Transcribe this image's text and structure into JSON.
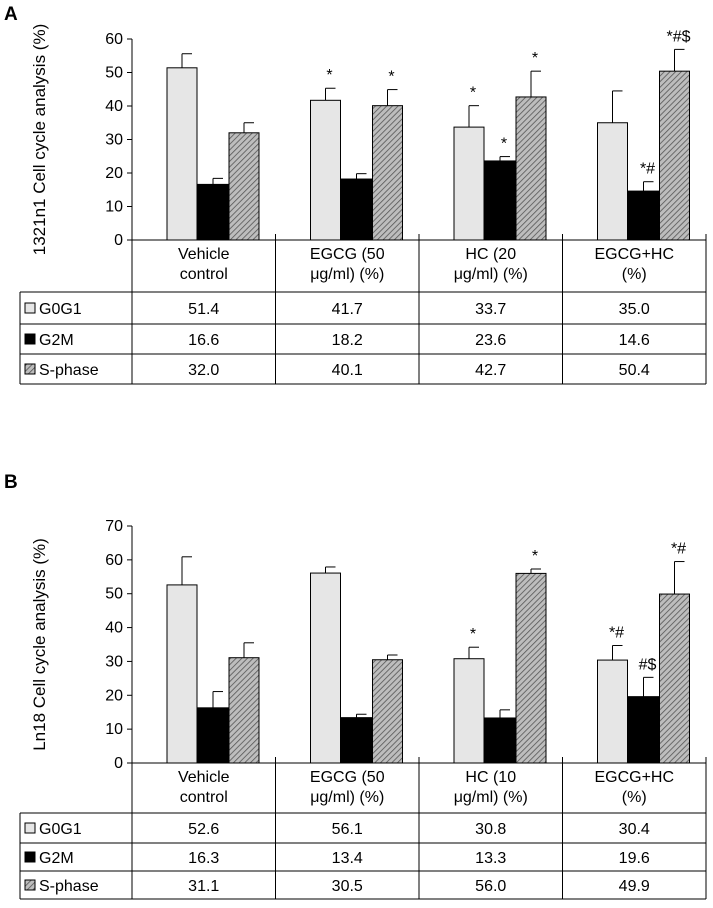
{
  "chart_data": [
    {
      "panel": "A",
      "type": "bar",
      "ylabel": "1321n1 Cell cycle analysis (%)",
      "ylim": [
        0,
        60
      ],
      "yticks": [
        0,
        10,
        20,
        30,
        40,
        50,
        60
      ],
      "categories": [
        [
          "Vehicle",
          "control"
        ],
        [
          "EGCG (50",
          "μg/ml) (%)"
        ],
        [
          "HC  (20",
          "μg/ml) (%)"
        ],
        [
          "EGCG+HC",
          "(%)"
        ]
      ],
      "series": [
        {
          "name": "G0G1",
          "values": [
            51.4,
            41.7,
            33.7,
            35.0
          ],
          "errors": [
            4.2,
            3.6,
            6.4,
            9.5
          ],
          "labels": [
            "",
            "*",
            "*",
            ""
          ]
        },
        {
          "name": "G2M",
          "values": [
            16.6,
            18.2,
            23.6,
            14.6
          ],
          "errors": [
            1.8,
            1.6,
            1.3,
            2.8
          ],
          "labels": [
            "",
            "",
            "*",
            "*#"
          ]
        },
        {
          "name": "S-phase",
          "values": [
            32.0,
            40.1,
            42.7,
            50.4
          ],
          "errors": [
            3.0,
            4.8,
            7.7,
            6.5
          ],
          "labels": [
            "",
            "*",
            "*",
            "*#$"
          ]
        }
      ],
      "table": [
        [
          "51.4",
          "41.7",
          "33.7",
          "35.0"
        ],
        [
          "16.6",
          "18.2",
          "23.6",
          "14.6"
        ],
        [
          "32.0",
          "40.1",
          "42.7",
          "50.4"
        ]
      ]
    },
    {
      "panel": "B",
      "type": "bar",
      "ylabel": "Ln18 Cell cycle analysis (%)",
      "ylim": [
        0,
        70
      ],
      "yticks": [
        0,
        10,
        20,
        30,
        40,
        50,
        60,
        70
      ],
      "categories": [
        [
          "Vehicle",
          "control"
        ],
        [
          "EGCG  (50",
          "μg/ml) (%)"
        ],
        [
          "HC (10",
          "μg/ml) (%)"
        ],
        [
          "EGCG+HC",
          "(%)"
        ]
      ],
      "series": [
        {
          "name": "G0G1",
          "values": [
            52.6,
            56.1,
            30.8,
            30.4
          ],
          "errors": [
            8.3,
            1.8,
            3.4,
            4.3
          ],
          "labels": [
            "",
            "",
            "*",
            "*#"
          ]
        },
        {
          "name": "G2M",
          "values": [
            16.3,
            13.4,
            13.3,
            19.6
          ],
          "errors": [
            4.8,
            1.0,
            2.4,
            5.7
          ],
          "labels": [
            "",
            "",
            "",
            "#$"
          ]
        },
        {
          "name": "S-phase",
          "values": [
            31.1,
            30.5,
            56.0,
            49.9
          ],
          "errors": [
            4.4,
            1.4,
            1.3,
            9.6
          ],
          "labels": [
            "",
            "",
            "*",
            "*#"
          ]
        }
      ],
      "table": [
        [
          "52.6",
          "56.1",
          "30.8",
          "30.4"
        ],
        [
          "16.3",
          "13.4",
          "13.3",
          "19.6"
        ],
        [
          "31.1",
          "30.5",
          "56.0",
          "49.9"
        ]
      ]
    }
  ]
}
